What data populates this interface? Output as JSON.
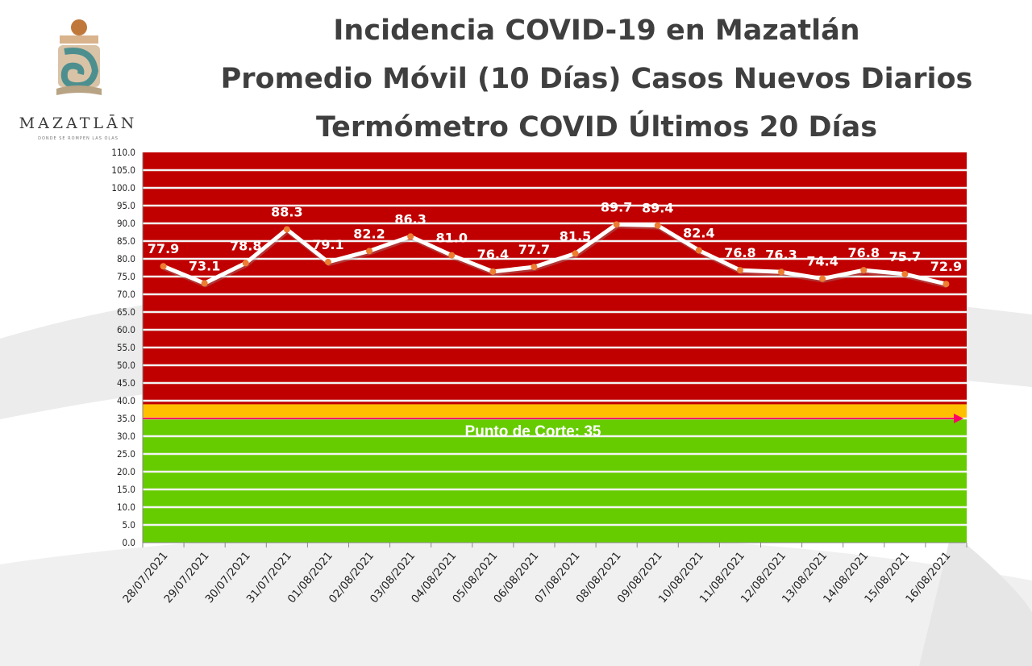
{
  "header": {
    "title_line1": "Incidencia COVID-19 en Mazatlán",
    "title_line2": "Promedio Móvil (10 Días) Casos Nuevos Diarios",
    "title_line3": "Termómetro COVID Últimos 20 Días"
  },
  "logo": {
    "wordmark": "MAZATLĀN",
    "tagline": "DONDE SE ROMPEN LAS OLAS"
  },
  "chart_data": {
    "type": "line",
    "title": "Termómetro COVID Últimos 20 Días",
    "xlabel": "",
    "ylabel": "",
    "ylim": [
      0,
      110
    ],
    "yticks": [
      "0.0",
      "5.0",
      "10.0",
      "15.0",
      "20.0",
      "25.0",
      "30.0",
      "35.0",
      "40.0",
      "45.0",
      "50.0",
      "55.0",
      "60.0",
      "65.0",
      "70.0",
      "75.0",
      "80.0",
      "85.0",
      "90.0",
      "95.0",
      "100.0",
      "105.0",
      "110.0"
    ],
    "categories": [
      "28/07/2021",
      "29/07/2021",
      "30/07/2021",
      "31/07/2021",
      "01/08/2021",
      "02/08/2021",
      "03/08/2021",
      "04/08/2021",
      "05/08/2021",
      "06/08/2021",
      "07/08/2021",
      "08/08/2021",
      "09/08/2021",
      "10/08/2021",
      "11/08/2021",
      "12/08/2021",
      "13/08/2021",
      "14/08/2021",
      "15/08/2021",
      "16/08/2021"
    ],
    "series": [
      {
        "values": [
          77.9,
          73.1,
          78.8,
          88.3,
          79.1,
          82.2,
          86.3,
          81.0,
          76.4,
          77.7,
          81.5,
          89.7,
          89.4,
          82.4,
          76.8,
          76.3,
          74.4,
          76.8,
          75.7,
          72.9
        ],
        "labels": [
          "77.9",
          "73.1",
          "78.8",
          "88.3",
          "79.1",
          "82.2",
          "86.3",
          "81.0",
          "76.4",
          "77.7",
          "81.5",
          "89.7",
          "89.4",
          "82.4",
          "76.8",
          "76.3",
          "74.4",
          "76.8",
          "75.7",
          "72.9"
        ]
      }
    ],
    "bands": [
      {
        "from": 0,
        "to": 35,
        "color": "#66cc00"
      },
      {
        "from": 35,
        "to": 39,
        "color": "#ffc000"
      },
      {
        "from": 39,
        "to": 110,
        "color": "#c00000"
      }
    ],
    "cutoff": {
      "value": 35,
      "label": "Punto de Corte: 35",
      "color": "#ff0066"
    },
    "line_color": "#ffffff",
    "marker_color": "#ed7d31",
    "grid": true,
    "legend": "none"
  }
}
